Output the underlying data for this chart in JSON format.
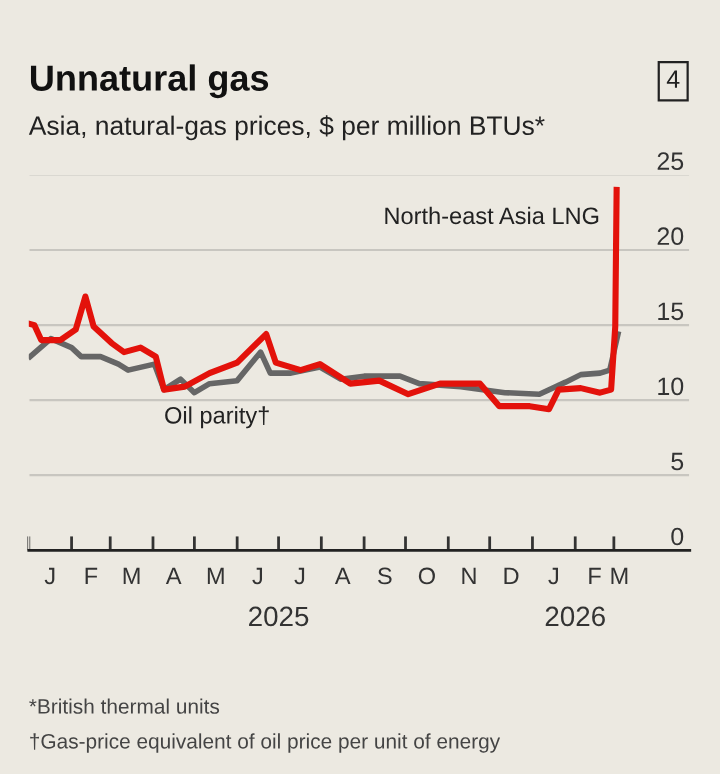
{
  "chart_data": {
    "type": "line",
    "title": "Unnatural gas",
    "subtitle": "Asia, natural-gas prices, $ per million BTUs*",
    "annotations": [
      "4",
      "J",
      "F",
      "M",
      "A",
      "M",
      "J",
      "J",
      "A",
      "S",
      "O",
      "N",
      "D",
      "J",
      "F",
      "M",
      "*British thermal units",
      "†Gas-price equivalent of oil price per unit of energy"
    ],
    "xlim": [
      "2025-01-01",
      "2026-04-25"
    ],
    "xticks": [
      {
        "value": "2025-01-01",
        "label": null
      },
      {
        "value": "2025-02-01",
        "label": null
      },
      {
        "value": "2025-03-01",
        "label": null
      },
      {
        "value": "2025-04-01",
        "label": null
      },
      {
        "value": "2025-05-01",
        "label": null
      },
      {
        "value": "2025-06-01",
        "label": null
      },
      {
        "value": "2025-07-01",
        "label": "2025"
      },
      {
        "value": "2025-08-01",
        "label": null
      },
      {
        "value": "2025-09-01",
        "label": null
      },
      {
        "value": "2025-10-01",
        "label": null
      },
      {
        "value": "2025-11-01",
        "label": null
      },
      {
        "value": "2025-12-01",
        "label": null
      },
      {
        "value": "2026-01-01",
        "label": null
      },
      {
        "value": "2026-02-01",
        "label": "2026"
      },
      {
        "value": "2026-03-01",
        "label": null
      }
    ],
    "ylim": [
      0,
      25
    ],
    "yticks": [
      0,
      5,
      10,
      15,
      20,
      25
    ],
    "grid": "y",
    "legend": false,
    "series": [
      {
        "name": "North-east Asia LNG",
        "color": "#e3120b",
        "x": [
          "2025-01-01",
          "2025-01-05",
          "2025-01-10",
          "2025-01-24",
          "2025-02-04",
          "2025-02-11",
          "2025-02-17",
          "2025-03-02",
          "2025-03-11",
          "2025-03-23",
          "2025-04-03",
          "2025-04-09",
          "2025-04-24",
          "2025-05-12",
          "2025-06-01",
          "2025-06-22",
          "2025-06-29",
          "2025-07-17",
          "2025-07-31",
          "2025-08-22",
          "2025-09-12",
          "2025-10-03",
          "2025-10-26",
          "2025-11-24",
          "2025-12-08",
          "2025-12-30",
          "2026-01-13",
          "2026-01-20",
          "2026-02-05",
          "2026-02-19",
          "2026-02-27",
          "2026-03-02",
          "2026-03-03"
        ],
        "values": [
          15.1,
          15.0,
          14.0,
          14.0,
          14.7,
          16.9,
          14.9,
          13.8,
          13.2,
          13.5,
          12.9,
          10.7,
          10.9,
          11.8,
          12.5,
          14.4,
          12.5,
          12.0,
          12.4,
          11.1,
          11.3,
          10.4,
          11.1,
          11.1,
          9.6,
          9.6,
          9.4,
          10.7,
          10.8,
          10.5,
          10.7,
          14.9,
          24.0
        ]
      },
      {
        "name": "Oil parity†",
        "color": "#666666",
        "x": [
          "2025-01-02",
          "2025-01-17",
          "2025-02-01",
          "2025-02-08",
          "2025-02-22",
          "2025-03-07",
          "2025-03-14",
          "2025-04-02",
          "2025-04-09",
          "2025-04-21",
          "2025-05-01",
          "2025-05-12",
          "2025-06-01",
          "2025-06-18",
          "2025-06-25",
          "2025-07-10",
          "2025-07-31",
          "2025-08-15",
          "2025-09-01",
          "2025-09-27",
          "2025-10-11",
          "2025-11-10",
          "2025-12-12",
          "2026-01-06",
          "2026-01-25",
          "2026-02-05",
          "2026-02-19",
          "2026-02-26",
          "2026-03-04"
        ],
        "values": [
          12.9,
          14.1,
          13.5,
          12.9,
          12.9,
          12.4,
          12.0,
          12.4,
          10.7,
          11.4,
          10.5,
          11.1,
          11.3,
          13.2,
          11.8,
          11.8,
          12.2,
          11.4,
          11.6,
          11.6,
          11.1,
          10.9,
          10.5,
          10.4,
          11.2,
          11.7,
          11.8,
          12.0,
          14.4
        ]
      }
    ]
  }
}
